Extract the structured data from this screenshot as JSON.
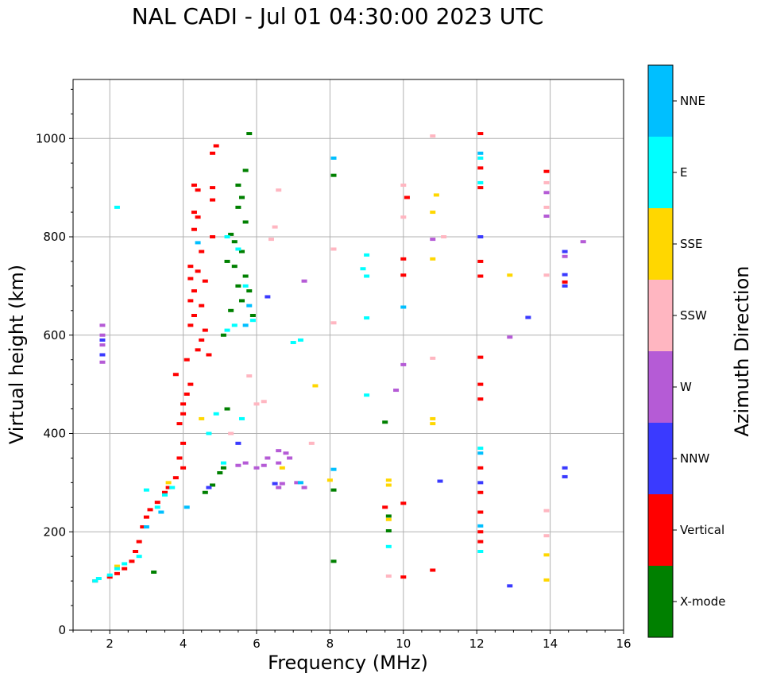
{
  "chart_data": {
    "type": "scatter",
    "title": "NAL CADI - Jul 01 04:30:00 2023 UTC",
    "xlabel": "Frequency (MHz)",
    "ylabel": "Virtual height (km)",
    "xlim": [
      1,
      16
    ],
    "ylim": [
      0,
      1120
    ],
    "xticks": [
      2,
      4,
      6,
      8,
      10,
      12,
      14,
      16
    ],
    "yticks": [
      0,
      200,
      400,
      600,
      800,
      1000
    ],
    "grid": true,
    "colorbar": {
      "label": "Azimuth Direction",
      "categories": [
        {
          "name": "X-mode",
          "color": "#008000"
        },
        {
          "name": "Vertical",
          "color": "#ff0000"
        },
        {
          "name": "NNW",
          "color": "#3a3aff"
        },
        {
          "name": "W",
          "color": "#b55bd6"
        },
        {
          "name": "SSW",
          "color": "#ffb6c1"
        },
        {
          "name": "SSE",
          "color": "#ffd700"
        },
        {
          "name": "E",
          "color": "#00ffff"
        },
        {
          "name": "NNE",
          "color": "#00bfff"
        }
      ]
    },
    "series": [
      {
        "name": "X-mode",
        "points": [
          [
            5.8,
            1010
          ],
          [
            5.7,
            935
          ],
          [
            5.5,
            905
          ],
          [
            5.6,
            880
          ],
          [
            5.5,
            860
          ],
          [
            5.7,
            830
          ],
          [
            5.3,
            805
          ],
          [
            5.4,
            790
          ],
          [
            5.6,
            770
          ],
          [
            5.2,
            750
          ],
          [
            5.4,
            740
          ],
          [
            5.7,
            720
          ],
          [
            5.5,
            700
          ],
          [
            5.8,
            690
          ],
          [
            5.6,
            670
          ],
          [
            5.3,
            650
          ],
          [
            5.9,
            640
          ],
          [
            5.1,
            600
          ],
          [
            5.2,
            450
          ],
          [
            5.1,
            330
          ],
          [
            5.0,
            320
          ],
          [
            4.8,
            295
          ],
          [
            4.6,
            280
          ],
          [
            3.2,
            118
          ],
          [
            8.1,
            925
          ],
          [
            9.5,
            423
          ],
          [
            9.6,
            232
          ],
          [
            9.6,
            202
          ],
          [
            8.1,
            285
          ],
          [
            8.1,
            140
          ]
        ]
      },
      {
        "name": "Vertical",
        "points": [
          [
            4.9,
            985
          ],
          [
            4.8,
            970
          ],
          [
            4.3,
            905
          ],
          [
            4.4,
            895
          ],
          [
            4.8,
            900
          ],
          [
            4.8,
            875
          ],
          [
            4.3,
            850
          ],
          [
            4.4,
            840
          ],
          [
            4.3,
            815
          ],
          [
            4.8,
            800
          ],
          [
            4.5,
            770
          ],
          [
            4.2,
            740
          ],
          [
            4.4,
            730
          ],
          [
            4.2,
            715
          ],
          [
            4.6,
            710
          ],
          [
            4.3,
            690
          ],
          [
            4.2,
            670
          ],
          [
            4.5,
            660
          ],
          [
            4.3,
            640
          ],
          [
            4.2,
            620
          ],
          [
            4.6,
            610
          ],
          [
            4.5,
            590
          ],
          [
            4.4,
            570
          ],
          [
            4.7,
            560
          ],
          [
            4.1,
            550
          ],
          [
            3.8,
            520
          ],
          [
            4.2,
            500
          ],
          [
            4.1,
            480
          ],
          [
            4.0,
            460
          ],
          [
            4.0,
            440
          ],
          [
            3.9,
            420
          ],
          [
            4.0,
            380
          ],
          [
            3.9,
            350
          ],
          [
            4.0,
            330
          ],
          [
            3.8,
            310
          ],
          [
            3.6,
            290
          ],
          [
            3.5,
            280
          ],
          [
            3.3,
            260
          ],
          [
            3.1,
            245
          ],
          [
            3.0,
            230
          ],
          [
            2.9,
            210
          ],
          [
            2.8,
            180
          ],
          [
            2.7,
            160
          ],
          [
            2.6,
            140
          ],
          [
            2.4,
            125
          ],
          [
            2.2,
            115
          ],
          [
            2.0,
            108
          ],
          [
            1.6,
            100
          ],
          [
            10.0,
            755
          ],
          [
            10.0,
            722
          ],
          [
            10.1,
            880
          ],
          [
            9.5,
            250
          ],
          [
            10.0,
            258
          ],
          [
            10.0,
            108
          ],
          [
            10.8,
            122
          ],
          [
            12.1,
            1010
          ],
          [
            12.1,
            940
          ],
          [
            12.1,
            900
          ],
          [
            12.1,
            750
          ],
          [
            12.1,
            720
          ],
          [
            12.1,
            555
          ],
          [
            12.1,
            500
          ],
          [
            12.1,
            470
          ],
          [
            12.1,
            330
          ],
          [
            12.1,
            280
          ],
          [
            12.1,
            240
          ],
          [
            12.1,
            200
          ],
          [
            12.1,
            180
          ],
          [
            13.9,
            933
          ],
          [
            14.4,
            708
          ]
        ]
      },
      {
        "name": "NNW",
        "points": [
          [
            6.3,
            678
          ],
          [
            6.5,
            298
          ],
          [
            5.5,
            380
          ],
          [
            4.7,
            290
          ],
          [
            11.0,
            303
          ],
          [
            12.9,
            90
          ],
          [
            13.4,
            636
          ],
          [
            14.4,
            770
          ],
          [
            14.4,
            723
          ],
          [
            14.4,
            700
          ],
          [
            14.4,
            330
          ],
          [
            14.4,
            312
          ],
          [
            12.1,
            800
          ],
          [
            12.1,
            300
          ],
          [
            1.8,
            560
          ],
          [
            1.8,
            590
          ]
        ]
      },
      {
        "name": "W",
        "points": [
          [
            1.8,
            620
          ],
          [
            1.8,
            600
          ],
          [
            1.8,
            580
          ],
          [
            1.8,
            545
          ],
          [
            6.6,
            365
          ],
          [
            6.3,
            350
          ],
          [
            6.6,
            340
          ],
          [
            6.2,
            335
          ],
          [
            6.0,
            330
          ],
          [
            6.8,
            360
          ],
          [
            6.9,
            350
          ],
          [
            5.7,
            340
          ],
          [
            5.5,
            335
          ],
          [
            6.7,
            298
          ],
          [
            6.6,
            290
          ],
          [
            7.1,
            300
          ],
          [
            7.3,
            290
          ],
          [
            12.9,
            596
          ],
          [
            13.9,
            890
          ],
          [
            13.9,
            842
          ],
          [
            14.4,
            760
          ],
          [
            14.9,
            790
          ],
          [
            10.8,
            795
          ],
          [
            10.0,
            540
          ],
          [
            9.8,
            488
          ],
          [
            7.3,
            710
          ]
        ]
      },
      {
        "name": "SSW",
        "points": [
          [
            6.5,
            820
          ],
          [
            6.4,
            795
          ],
          [
            6.2,
            465
          ],
          [
            6.0,
            460
          ],
          [
            5.8,
            517
          ],
          [
            5.3,
            400
          ],
          [
            6.6,
            895
          ],
          [
            8.1,
            775
          ],
          [
            8.1,
            625
          ],
          [
            10.0,
            905
          ],
          [
            10.0,
            840
          ],
          [
            10.8,
            1005
          ],
          [
            10.8,
            553
          ],
          [
            11.1,
            800
          ],
          [
            13.9,
            910
          ],
          [
            13.9,
            860
          ],
          [
            13.9,
            722
          ],
          [
            13.9,
            243
          ],
          [
            13.9,
            192
          ],
          [
            7.5,
            380
          ],
          [
            9.6,
            110
          ]
        ]
      },
      {
        "name": "SSE",
        "points": [
          [
            10.9,
            885
          ],
          [
            10.8,
            850
          ],
          [
            10.8,
            755
          ],
          [
            10.8,
            430
          ],
          [
            10.8,
            420
          ],
          [
            7.6,
            497
          ],
          [
            8.0,
            305
          ],
          [
            9.6,
            305
          ],
          [
            9.6,
            295
          ],
          [
            9.6,
            225
          ],
          [
            12.9,
            722
          ],
          [
            13.9,
            153
          ],
          [
            13.9,
            102
          ],
          [
            6.7,
            330
          ],
          [
            4.5,
            430
          ],
          [
            3.6,
            300
          ],
          [
            2.2,
            130
          ]
        ]
      },
      {
        "name": "E",
        "points": [
          [
            5.2,
            800
          ],
          [
            5.5,
            775
          ],
          [
            5.7,
            700
          ],
          [
            5.9,
            630
          ],
          [
            5.4,
            620
          ],
          [
            5.2,
            610
          ],
          [
            5.6,
            430
          ],
          [
            4.9,
            440
          ],
          [
            4.7,
            400
          ],
          [
            3.7,
            290
          ],
          [
            3.5,
            275
          ],
          [
            3.3,
            250
          ],
          [
            3.0,
            285
          ],
          [
            2.8,
            150
          ],
          [
            2.4,
            135
          ],
          [
            2.2,
            125
          ],
          [
            2.0,
            112
          ],
          [
            1.7,
            105
          ],
          [
            1.6,
            100
          ],
          [
            8.9,
            735
          ],
          [
            9.0,
            720
          ],
          [
            9.0,
            763
          ],
          [
            9.0,
            635
          ],
          [
            9.0,
            478
          ],
          [
            7.2,
            590
          ],
          [
            7.0,
            585
          ],
          [
            9.6,
            170
          ],
          [
            12.1,
            960
          ],
          [
            12.1,
            910
          ],
          [
            12.1,
            370
          ],
          [
            12.1,
            160
          ],
          [
            2.2,
            860
          ],
          [
            5.1,
            340
          ]
        ]
      },
      {
        "name": "NNE",
        "points": [
          [
            8.1,
            960
          ],
          [
            8.1,
            327
          ],
          [
            10.0,
            657
          ],
          [
            12.1,
            970
          ],
          [
            12.1,
            360
          ],
          [
            12.1,
            212
          ],
          [
            7.2,
            300
          ],
          [
            5.8,
            660
          ],
          [
            5.7,
            620
          ],
          [
            4.4,
            788
          ],
          [
            4.1,
            250
          ],
          [
            3.4,
            240
          ],
          [
            3.0,
            210
          ]
        ]
      }
    ]
  }
}
